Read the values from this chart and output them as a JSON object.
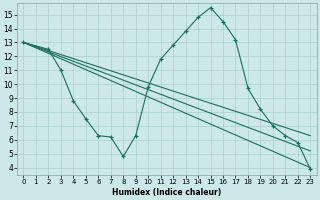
{
  "title": "",
  "xlabel": "Humidex (Indice chaleur)",
  "xlim": [
    -0.5,
    23.5
  ],
  "ylim": [
    3.5,
    15.8
  ],
  "xticks": [
    0,
    1,
    2,
    3,
    4,
    5,
    6,
    7,
    8,
    9,
    10,
    11,
    12,
    13,
    14,
    15,
    16,
    17,
    18,
    19,
    20,
    21,
    22,
    23
  ],
  "yticks": [
    4,
    5,
    6,
    7,
    8,
    9,
    10,
    11,
    12,
    13,
    14,
    15
  ],
  "bg_color": "#cce8e8",
  "grid_color": "#aacfcf",
  "line_color": "#1a6e60",
  "main_series": {
    "x": [
      0,
      2,
      3,
      4,
      5,
      6,
      7,
      8,
      9,
      10,
      11,
      12,
      13,
      14,
      15,
      16,
      17,
      18,
      19,
      20,
      21,
      22,
      23
    ],
    "y": [
      13,
      12.5,
      11.0,
      8.8,
      7.5,
      6.3,
      6.2,
      4.8,
      6.3,
      9.8,
      11.8,
      12.8,
      13.8,
      14.8,
      15.5,
      14.5,
      13.2,
      9.7,
      8.2,
      7.0,
      6.3,
      5.8,
      3.9
    ]
  },
  "trend_lines": [
    {
      "x": [
        0,
        23
      ],
      "y": [
        13.0,
        4.0
      ]
    },
    {
      "x": [
        0,
        23
      ],
      "y": [
        13.0,
        5.2
      ]
    },
    {
      "x": [
        0,
        23
      ],
      "y": [
        13.0,
        6.3
      ]
    }
  ]
}
